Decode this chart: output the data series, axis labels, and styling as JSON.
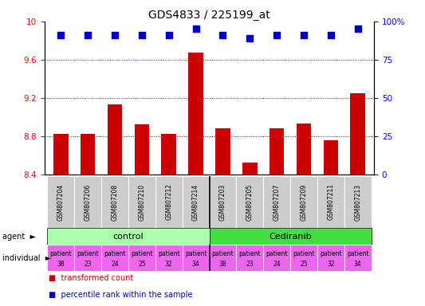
{
  "title": "GDS4833 / 225199_at",
  "samples": [
    "GSM807204",
    "GSM807206",
    "GSM807208",
    "GSM807210",
    "GSM807212",
    "GSM807214",
    "GSM807203",
    "GSM807205",
    "GSM807207",
    "GSM807209",
    "GSM807211",
    "GSM807213"
  ],
  "bar_values": [
    8.82,
    8.82,
    9.13,
    8.92,
    8.82,
    9.67,
    8.88,
    8.52,
    8.88,
    8.93,
    8.76,
    9.25
  ],
  "percentile_values": [
    91,
    91,
    91,
    91,
    91,
    95,
    91,
    89,
    91,
    91,
    91,
    95
  ],
  "bar_color": "#cc0000",
  "dot_color": "#0000cc",
  "ylim_left": [
    8.4,
    10.0
  ],
  "ylim_right": [
    0,
    100
  ],
  "yticks_left": [
    8.4,
    8.8,
    9.2,
    9.6,
    10.0
  ],
  "ytick_labels_left": [
    "8.4",
    "8.8",
    "9.2",
    "9.6",
    "10"
  ],
  "yticks_right": [
    0,
    25,
    50,
    75,
    100
  ],
  "ytick_labels_right": [
    "0",
    "25",
    "50",
    "75",
    "100%"
  ],
  "grid_values": [
    8.8,
    9.2,
    9.6
  ],
  "agent_groups": [
    {
      "label": "control",
      "start": 0,
      "end": 5,
      "color": "#aaffaa"
    },
    {
      "label": "Cediranib",
      "start": 6,
      "end": 11,
      "color": "#44dd44"
    }
  ],
  "individual_labels": [
    [
      "patient",
      "38"
    ],
    [
      "patient",
      "23"
    ],
    [
      "patient",
      "24"
    ],
    [
      "patient",
      "25"
    ],
    [
      "patient",
      "32"
    ],
    [
      "patient",
      "34"
    ],
    [
      "patient",
      "38"
    ],
    [
      "patient",
      "23"
    ],
    [
      "patient",
      "24"
    ],
    [
      "patient",
      "25"
    ],
    [
      "patient",
      "32"
    ],
    [
      "patient",
      "34"
    ]
  ],
  "individual_bg": "#ee66ee",
  "xticklabel_bg": "#cccccc",
  "legend_items": [
    {
      "color": "#cc0000",
      "label": "transformed count"
    },
    {
      "color": "#0000cc",
      "label": "percentile rank within the sample"
    }
  ],
  "bar_width": 0.55,
  "dot_size": 40,
  "title_fontsize": 10,
  "tick_fontsize": 7.5,
  "label_fontsize": 8
}
